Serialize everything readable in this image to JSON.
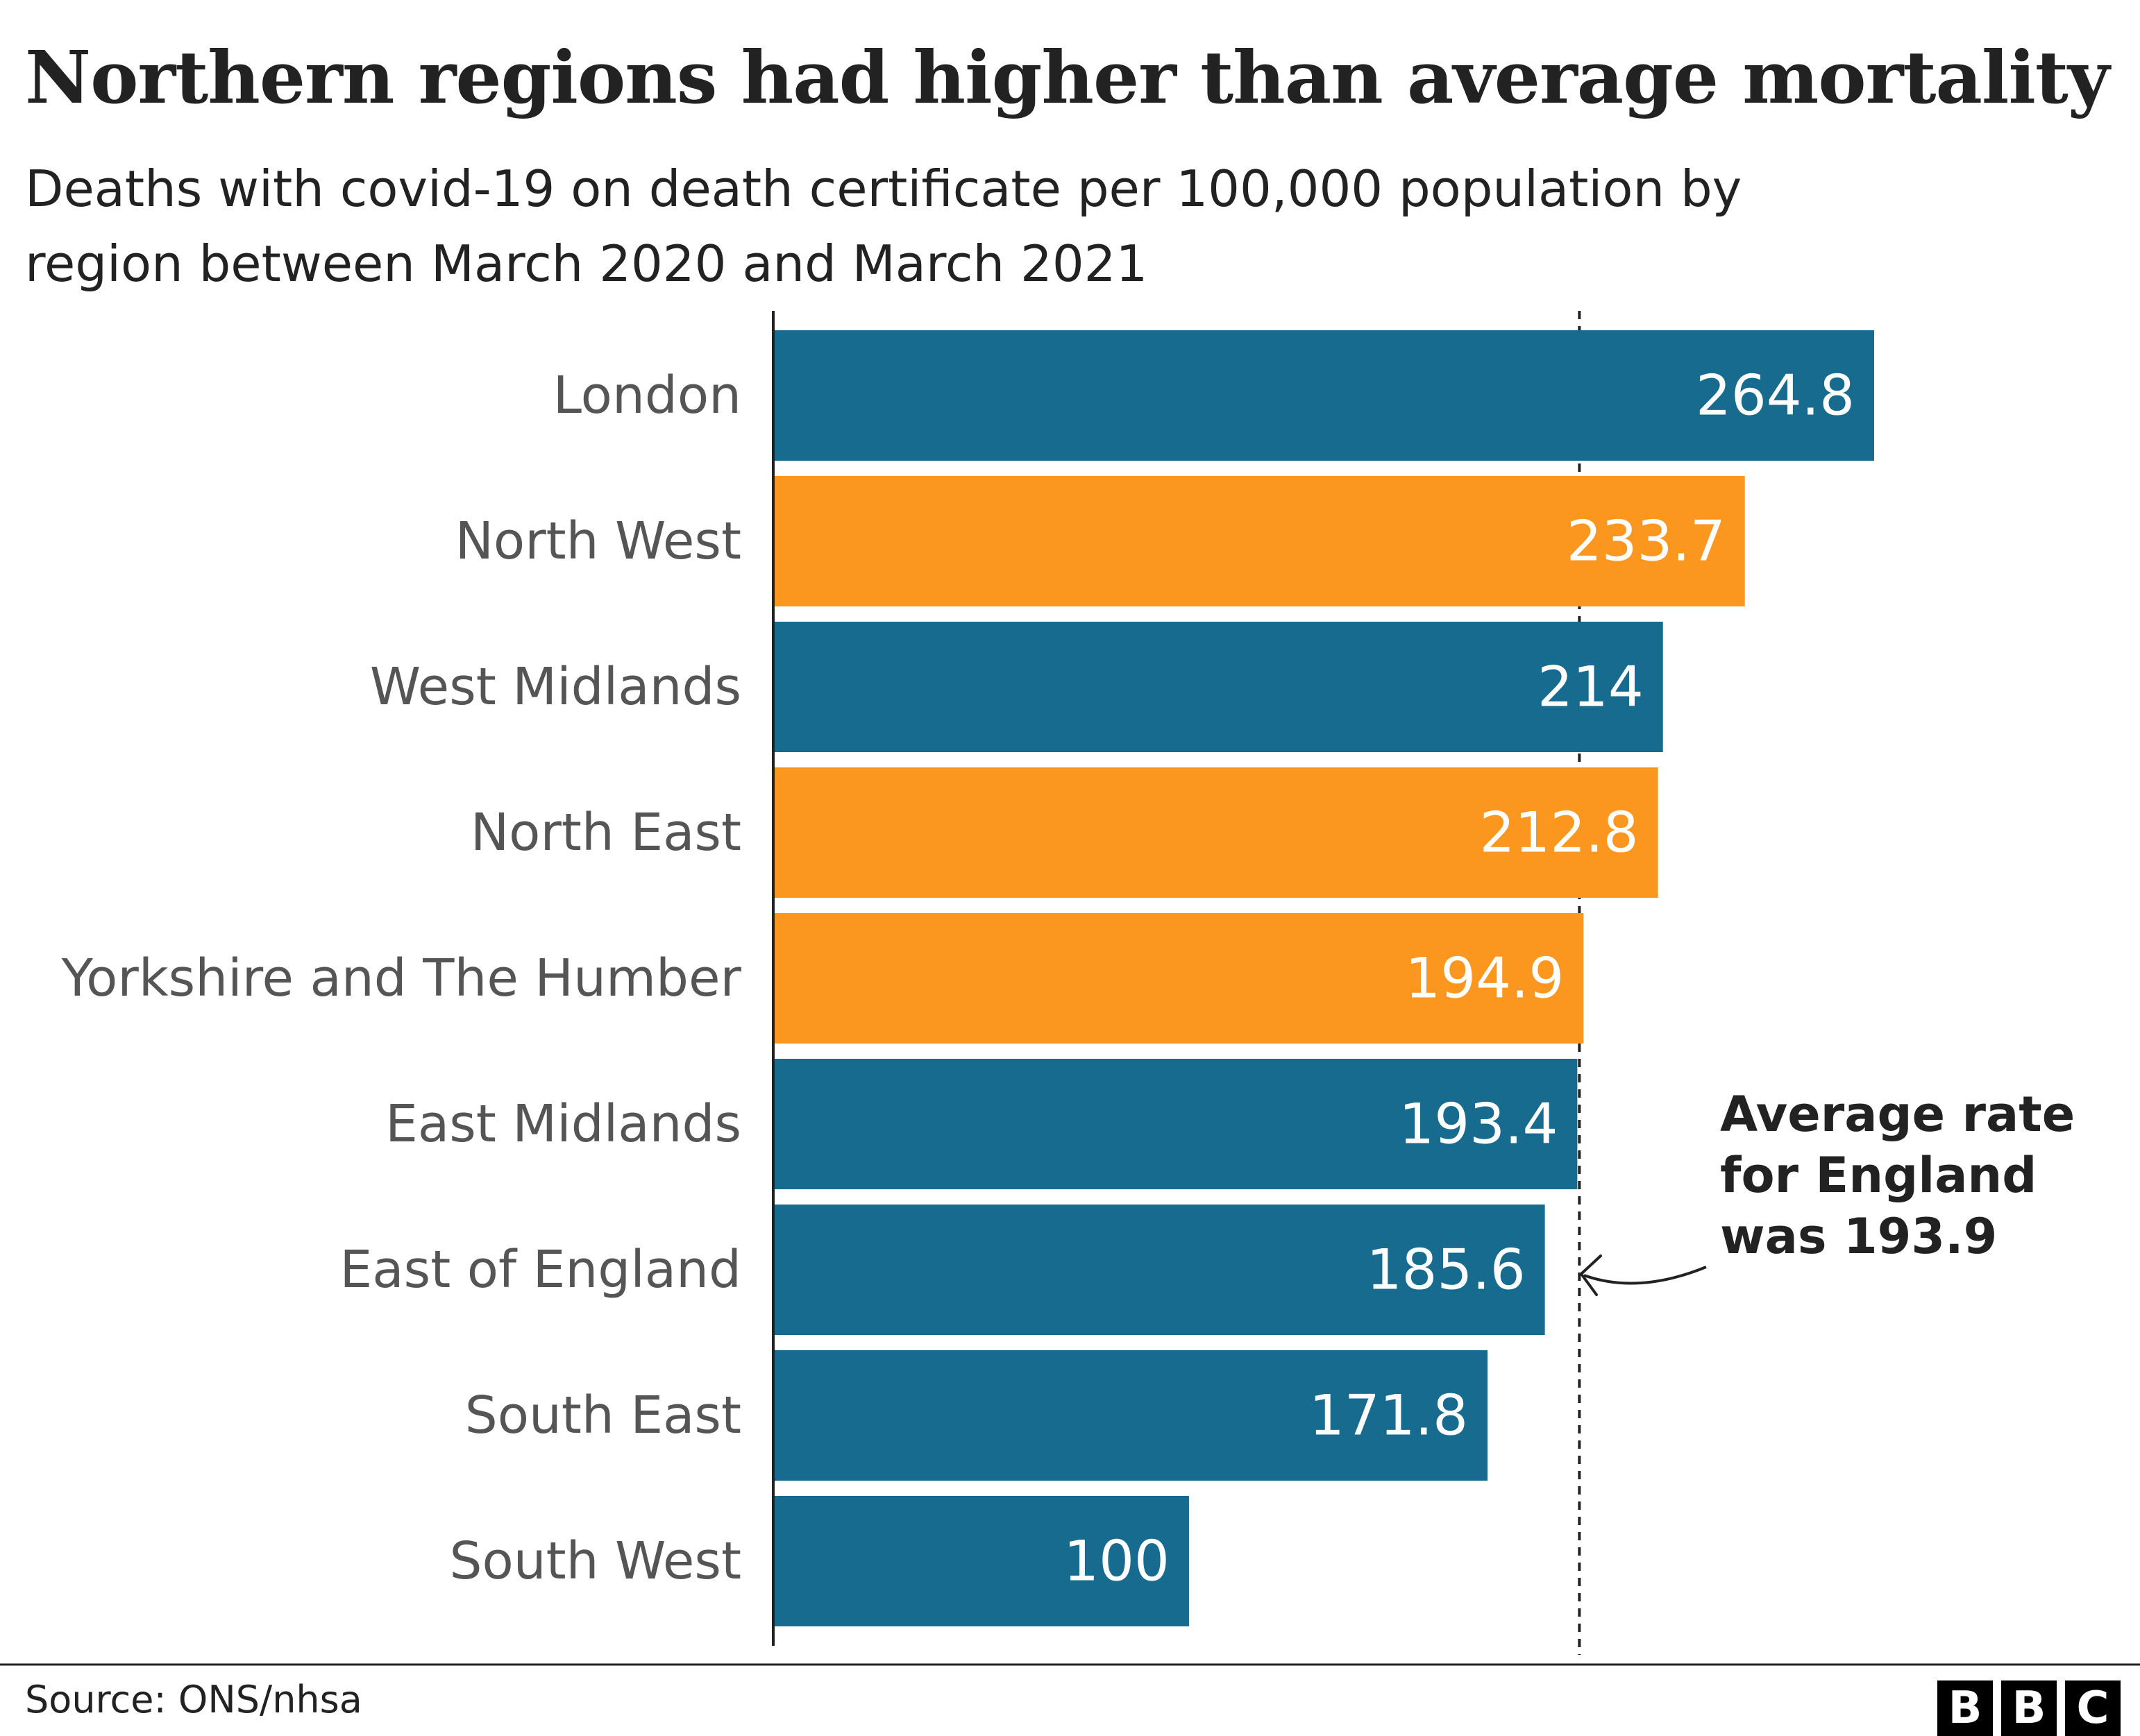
{
  "title": "Northern regions had higher than average mortality",
  "subtitle": "Deaths with covid-19 on death certificate per 100,000 population by region between March 2020 and March 2021",
  "source": "Source: ONS/nhsa",
  "logo": [
    "B",
    "B",
    "C"
  ],
  "colors": {
    "default": "#176b8e",
    "northern": "#fb961f",
    "text": "#222222",
    "label": "#555555"
  },
  "annotation": {
    "lines": [
      "Average rate",
      "for England",
      "was 193.9"
    ],
    "value": 193.9
  },
  "chart_data": {
    "type": "bar",
    "orientation": "horizontal",
    "categories": [
      "London",
      "North West",
      "West Midlands",
      "North East",
      "Yorkshire and The Humber",
      "East Midlands",
      "East of England",
      "South East",
      "South West"
    ],
    "values": [
      264.8,
      233.7,
      214,
      212.8,
      194.9,
      193.4,
      185.6,
      171.8,
      100
    ],
    "labels": [
      "264.8",
      "233.7",
      "214",
      "212.8",
      "194.9",
      "193.4",
      "185.6",
      "171.8",
      "100"
    ],
    "highlight": [
      false,
      true,
      false,
      true,
      true,
      false,
      false,
      false,
      false
    ],
    "reference_line": 193.9,
    "xlim": [
      0,
      264.8
    ],
    "grid": false,
    "legend": "none"
  }
}
